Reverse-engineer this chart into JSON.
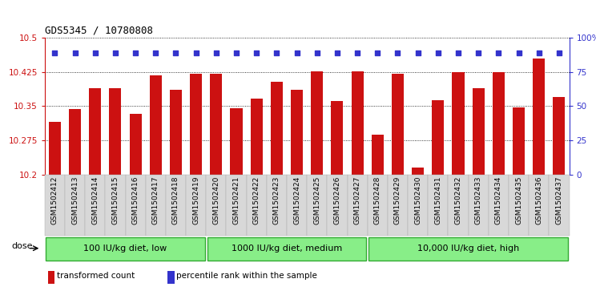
{
  "title": "GDS5345 / 10780808",
  "samples": [
    "GSM1502412",
    "GSM1502413",
    "GSM1502414",
    "GSM1502415",
    "GSM1502416",
    "GSM1502417",
    "GSM1502418",
    "GSM1502419",
    "GSM1502420",
    "GSM1502421",
    "GSM1502422",
    "GSM1502423",
    "GSM1502424",
    "GSM1502425",
    "GSM1502426",
    "GSM1502427",
    "GSM1502428",
    "GSM1502429",
    "GSM1502430",
    "GSM1502431",
    "GSM1502432",
    "GSM1502433",
    "GSM1502434",
    "GSM1502435",
    "GSM1502436",
    "GSM1502437"
  ],
  "bar_values": [
    10.316,
    10.344,
    10.39,
    10.39,
    10.334,
    10.418,
    10.386,
    10.422,
    10.422,
    10.346,
    10.367,
    10.404,
    10.386,
    10.426,
    10.362,
    10.426,
    10.287,
    10.422,
    10.215,
    10.364,
    10.424,
    10.39,
    10.424,
    10.348,
    10.455,
    10.37
  ],
  "percentile_values": [
    10.467,
    10.467,
    10.467,
    10.467,
    10.467,
    10.467,
    10.467,
    10.467,
    10.467,
    10.467,
    10.467,
    10.467,
    10.467,
    10.467,
    10.467,
    10.467,
    10.467,
    10.467,
    10.467,
    10.467,
    10.467,
    10.467,
    10.467,
    10.467,
    10.467,
    10.467
  ],
  "ymin": 10.2,
  "ymax": 10.5,
  "yticks": [
    10.2,
    10.275,
    10.35,
    10.425,
    10.5
  ],
  "ytick_labels": [
    "10.2",
    "10.275",
    "10.35",
    "10.425",
    "10.5"
  ],
  "right_yticks": [
    0,
    25,
    50,
    75,
    100
  ],
  "right_ytick_labels": [
    "0",
    "25",
    "50",
    "75",
    "100%"
  ],
  "bar_color": "#cc1111",
  "dot_color": "#3333cc",
  "groups": [
    {
      "label": "100 IU/kg diet, low",
      "start": 0,
      "end": 8
    },
    {
      "label": "1000 IU/kg diet, medium",
      "start": 8,
      "end": 16
    },
    {
      "label": "10,000 IU/kg diet, high",
      "start": 16,
      "end": 26
    }
  ],
  "group_color": "#88ee88",
  "group_border_color": "#33aa33",
  "legend_items": [
    {
      "label": "transformed count",
      "color": "#cc1111",
      "marker": "s"
    },
    {
      "label": "percentile rank within the sample",
      "color": "#3333cc",
      "marker": "s"
    }
  ],
  "dose_label": "dose",
  "xtick_bg": "#d8d8d8"
}
